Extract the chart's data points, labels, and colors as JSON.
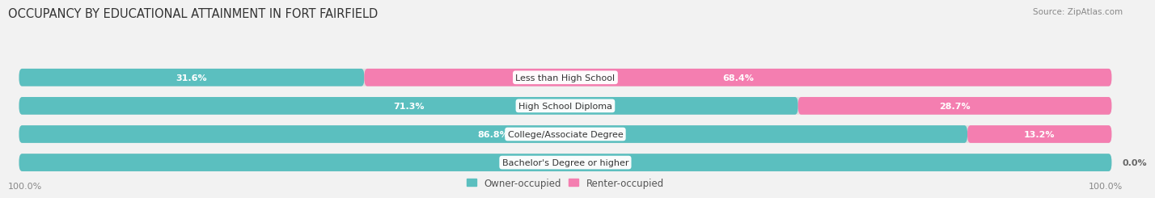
{
  "title": "OCCUPANCY BY EDUCATIONAL ATTAINMENT IN FORT FAIRFIELD",
  "source": "Source: ZipAtlas.com",
  "categories": [
    "Less than High School",
    "High School Diploma",
    "College/Associate Degree",
    "Bachelor's Degree or higher"
  ],
  "owner_pct": [
    31.6,
    71.3,
    86.8,
    100.0
  ],
  "renter_pct": [
    68.4,
    28.7,
    13.2,
    0.0
  ],
  "owner_color": "#5BBFBF",
  "renter_color": "#F47EB0",
  "bg_color": "#f2f2f2",
  "bar_bg_color": "#e0e0e0",
  "bar_height": 0.62,
  "title_fontsize": 10.5,
  "label_fontsize": 8.0,
  "axis_label_fontsize": 8,
  "legend_fontsize": 8.5,
  "source_fontsize": 7.5,
  "xlim": [
    0,
    100
  ],
  "x_left_label": "100.0%",
  "x_right_label": "100.0%"
}
